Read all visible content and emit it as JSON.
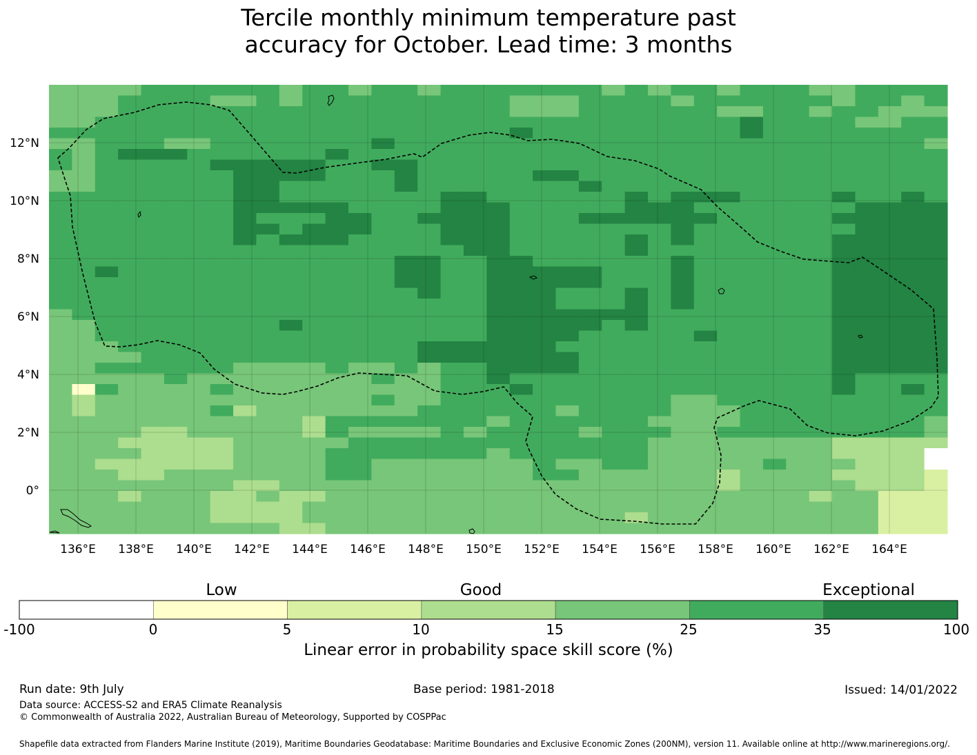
{
  "title_line1": "Tercile monthly minimum temperature past",
  "title_line2": "accuracy for October. Lead time: 3 months",
  "map": {
    "lon_range": [
      135,
      166
    ],
    "lat_range": [
      -1.5,
      14
    ],
    "lon_ticks": [
      "136°E",
      "138°E",
      "140°E",
      "142°E",
      "144°E",
      "146°E",
      "148°E",
      "150°E",
      "152°E",
      "154°E",
      "156°E",
      "158°E",
      "160°E",
      "162°E",
      "164°E"
    ],
    "lat_ticks": [
      "12°N",
      "10°N",
      "8°N",
      "6°N",
      "4°N",
      "2°N",
      "0°"
    ],
    "grid": true,
    "boundary": "dashed EEZ outline",
    "colors": {
      "1": "#ffffcc",
      "2": "#d9f0a3",
      "3": "#addd8e",
      "4": "#78c679",
      "5": "#41ab5d",
      "6": "#238443",
      "0": "#ffffff"
    },
    "cell_rows": [
      "444455555545545545555555454554555445555",
      "444555544545555555554445555455555545545",
      "444555555555555555554445555554455455444",
      "445555555555555555555555555555655554455",
      "555555555555555555556555555555655555555",
      "445554455555556555555555555555555555554",
      "545666555555655555555555555555555555555",
      "545555566666556655555555555555555555555",
      "445555556666555655555665555555555555555",
      "445555556655555655555556555555555555555",
      "555555556655555556655555565666555565565",
      "555555556666655556665555566655555556666",
      "555555556555665566665556666665555566666",
      "555555556656665556665555555655555556666",
      "555555556566655556665555565655555566666",
      "555555555555555555665555565555555566666",
      "555555555555555665566555555655555566666",
      "556555555555555665566666555655555566666",
      "555555555555555665566666555655555566666",
      "555555555555555565566655565655555566666",
      "555555555555555555566655565655555566666",
      "455555555555555555566666665555555566666",
      "445555555565555555566666565555555566666",
      "445555555555555555566665555565555566666",
      "444555555555555566666655555555555566666",
      "444455555555555566666665555555555566666",
      "445555554444544545566665555555555566666",
      "444445444444445445565555555555555565555",
      "415444454444444445556555555555555565565",
      "434444444444445445555555555445555555555",
      "434444453444444455555545555444555555555",
      "444444444443555555545555554444555555554",
      "444433444443544445455554555445555555554",
      "444333334444455555555555554444444433333",
      "444433334444555555545555554444444433330",
      "443333334444554444444544554444454443330",
      "444334444444554444444554444443444433332",
      "444444443344444444444444444443444443332",
      "444344433433444444444444444444444344222",
      "444444433334444444444444444444444444222",
      "444444433334444444444444434444444444222",
      "444444444433444444444444444444444444222"
    ]
  },
  "colorbar": {
    "words": [
      "Low",
      "Good",
      "Exceptional"
    ],
    "ticks": [
      "-100",
      "0",
      "5",
      "10",
      "15",
      "25",
      "35",
      "100"
    ],
    "colors": [
      "#ffffff",
      "#ffffcc",
      "#d9f0a3",
      "#addd8e",
      "#78c679",
      "#41ab5d",
      "#238443"
    ],
    "label": "Linear error in probability space skill score (%)"
  },
  "footer": {
    "run_date": "Run date: 9th July",
    "base_period": "Base period: 1981-2018",
    "issued": "Issued: 14/01/2022",
    "data_source": "Data source: ACCESS-S2 and ERA5 Climate Reanalysis",
    "copyright": "© Commonwealth of Australia 2022, Australian Bureau of Meteorology, Supported by COSPPac",
    "shapefile": "Shapefile data extracted from Flanders Marine Institute (2019), Maritime Boundaries Geodatabase: Maritime Boundaries and Exclusive Economic Zones (200NM), version 11. Available online at http://www.marineregions.org/."
  }
}
